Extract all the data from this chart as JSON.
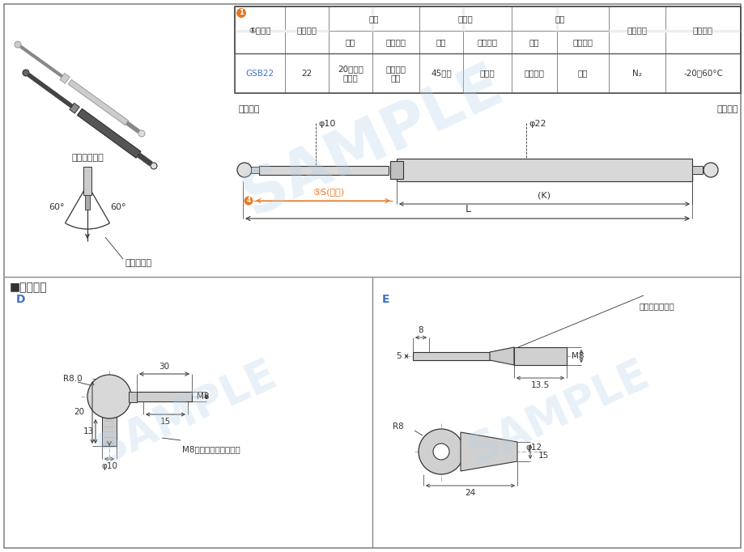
{
  "bg_color": "#ffffff",
  "line_color": "#333333",
  "orange_color": "#E87722",
  "blue_color": "#4472C4",
  "sample_color": "#b8d0ea",
  "title_section": "■接头形状",
  "label_D": "D",
  "label_E": "E",
  "front_label": "前端接头",
  "rear_label": "后端接头",
  "dim_phi10": "φ10",
  "dim_phi22": "φ22",
  "dim_S": "⑤S(行程)",
  "dim_K": "(K)",
  "dim_L": "L",
  "angle_label": "使用角度说明",
  "angle_60_left": "60°",
  "angle_60_right": "60°",
  "piston_down": "活塞杆朝下",
  "d_dim_R80": "R8.0",
  "d_dim_30": "30",
  "d_dim_M8": "M8",
  "d_dim_15": "15",
  "d_dim_20": "20",
  "d_dim_13": "13",
  "d_dim_phi10": "φ10",
  "d_note": "M8（此端接氮气弹簧）",
  "e_dim_8": "8",
  "e_dim_5": "5",
  "e_dim_135": "13.5",
  "e_dim_M8": "M8",
  "e_note": "此端接氮气弹簧",
  "e_dim_R8": "R8",
  "e_dim_phi12": "φ12",
  "e_dim_15b": "15",
  "e_dim_24": "24",
  "table_col1_header": "①类型码",
  "table_col2_header": "气缸外径",
  "table_qigang": "气缸",
  "table_huosegan": "活塞杆",
  "table_jietou": "接头",
  "table_shiyong_qiti": "使用气体",
  "table_shiyong_wendu": "使用温度",
  "table_cailiao": "材质",
  "table_biaomian": "表面处理",
  "table_model": "GSB22",
  "table_diameter": "22",
  "table_mat1": "20号锂无\n缝锂管",
  "table_surf1": "黑色亚光\n烤漆",
  "table_mat2": "45号锂",
  "table_surf2": "镀硬锄",
  "table_mat3": "轧制锂材",
  "table_surf3": "镀锈",
  "table_gas": "N₂",
  "table_temp": "-20～60°C"
}
